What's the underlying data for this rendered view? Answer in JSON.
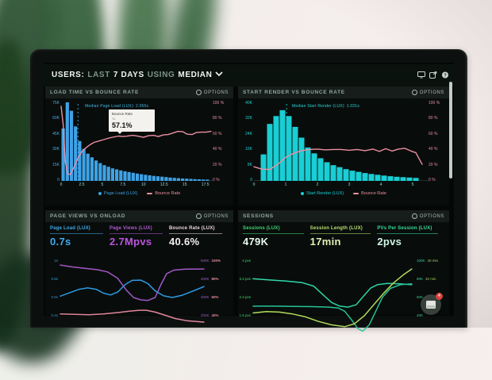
{
  "ui": {
    "options_label": "OPTIONS"
  },
  "header": {
    "title_parts": [
      {
        "text": "USERS:",
        "bold": true
      },
      {
        "text": "LAST",
        "bold": false
      },
      {
        "text": "7 DAYS",
        "bold": true
      },
      {
        "text": "USING",
        "bold": false
      },
      {
        "text": "MEDIAN",
        "bold": true
      }
    ],
    "icons": [
      "display-icon",
      "share-icon",
      "help-icon"
    ]
  },
  "panels": {
    "load_time": {
      "title": "LOAD TIME VS BOUNCE RATE",
      "median_label": "Median Page Load (LUX): 2.056s",
      "tooltip": {
        "title": "Bounce Rate",
        "sub": "7s",
        "value": "57.1%"
      },
      "y_left": [
        "75K",
        "60K",
        "45K",
        "30K",
        "15K",
        "0"
      ],
      "y_right": [
        "100 %",
        "80 %",
        "60 %",
        "40 %",
        "20 %",
        "0 %"
      ],
      "legend": [
        {
          "label": "Page Load (LUX)",
          "color": "#3ea2e6",
          "marker": "dot"
        },
        {
          "label": "Bounce Rate",
          "color": "#ec8fa4",
          "marker": "line"
        }
      ]
    },
    "start_render": {
      "title": "START RENDER VS BOUNCE RATE",
      "median_label": "Median Start Render (LUX): 1.031s",
      "y_left": [
        "40K",
        "32K",
        "24K",
        "16K",
        "8K",
        "0"
      ],
      "y_right": [
        "100 %",
        "80 %",
        "60 %",
        "40 %",
        "20 %",
        "0 %"
      ],
      "legend": [
        {
          "label": "Start Render (LUX)",
          "color": "#19ced4",
          "marker": "dot"
        },
        {
          "label": "Bounce Rate",
          "color": "#ec8fa4",
          "marker": "line"
        }
      ]
    },
    "page_views": {
      "title": "PAGE VIEWS VS ONLOAD",
      "metrics": [
        {
          "label": "Page Load (LUX)",
          "value": "0.7s",
          "color": "#3fa9ec",
          "value_color": "#41aaee"
        },
        {
          "label": "Page Views (LUX)",
          "value": "2.7Mpvs",
          "color": "#b45ad2",
          "value_color": "#bb55dd"
        },
        {
          "label": "Bounce Rate (LUX)",
          "value": "40.6%",
          "color": "#edd7de",
          "value_color": "#f4edf1"
        }
      ],
      "y_left": [
        "1s",
        "0.8s",
        "0.6s",
        "0.4s"
      ],
      "y_right": [
        [
          "500K",
          "100%"
        ],
        [
          "400K",
          "80%"
        ],
        [
          "300K",
          "60%"
        ],
        [
          "200K",
          "40%"
        ]
      ]
    },
    "sessions": {
      "title": "SESSIONS",
      "metrics": [
        {
          "label": "Sessions (LUX)",
          "value": "479K",
          "color": "#43d873",
          "value_color": "#e9fbef"
        },
        {
          "label": "Session Length (LUX)",
          "value": "17min",
          "color": "#b9e171",
          "value_color": "#e3f2b4"
        },
        {
          "label": "PVs Per Session (LUX)",
          "value": "2pvs",
          "color": "#3bdf9f",
          "value_color": "#d2f7e7"
        }
      ],
      "y_left": [
        "4 pvs",
        "3.2 pvs",
        "2.4 pvs",
        "1.6 pvs"
      ],
      "y_right": [
        [
          "100K",
          "40 min"
        ],
        [
          "80K",
          "32 min"
        ],
        [
          "60K",
          "24 min"
        ],
        [
          "40K",
          ""
        ]
      ]
    }
  },
  "messenger": {
    "badge": "4"
  },
  "chart_data": [
    {
      "id": "load_time_vs_bounce",
      "type": "bar",
      "title": "LOAD TIME VS BOUNCE RATE",
      "xlim": [
        0,
        18.4
      ],
      "x_ticks": [
        0,
        2.5,
        5,
        7.5,
        10,
        12.5,
        15,
        17.5
      ],
      "y_left_max_k": 75,
      "y_right_max_pct": 100,
      "median_x": 2.056,
      "bars": {
        "name": "Page Load (LUX)",
        "color": "#3ea2e6",
        "x_start": 0,
        "bin_width": 0.5,
        "values_k": [
          50,
          75,
          67,
          52,
          38,
          30.5,
          26,
          22.5,
          19.5,
          17,
          15,
          13.5,
          12,
          11,
          10,
          9.2,
          8.4,
          7.7,
          7,
          6.4,
          5.8,
          5.3,
          4.8,
          4.4,
          4,
          3.6,
          3.2,
          2.9,
          2.6,
          2.3,
          2.1,
          1.9,
          1.7,
          1.5,
          1.3,
          1.2
        ]
      },
      "line": {
        "name": "Bounce Rate",
        "color": "#ec8fa4",
        "points_pct": [
          [
            0,
            95
          ],
          [
            0.25,
            72
          ],
          [
            0.5,
            25
          ],
          [
            0.8,
            9
          ],
          [
            1.1,
            8
          ],
          [
            1.5,
            16
          ],
          [
            2,
            28
          ],
          [
            2.5,
            37
          ],
          [
            3,
            42
          ],
          [
            3.5,
            46
          ],
          [
            4,
            49
          ],
          [
            5,
            52
          ],
          [
            6,
            55
          ],
          [
            7,
            57.1
          ],
          [
            7.5,
            56.5
          ],
          [
            8,
            57
          ],
          [
            8.7,
            58
          ],
          [
            9.3,
            57
          ],
          [
            10,
            55.5
          ],
          [
            10.6,
            57.5
          ],
          [
            11.2,
            58
          ],
          [
            11.8,
            56.5
          ],
          [
            12.4,
            58.5
          ],
          [
            13,
            59
          ],
          [
            13.6,
            61
          ],
          [
            14.2,
            63
          ],
          [
            14.8,
            62.5
          ],
          [
            15.3,
            59.5
          ],
          [
            15.9,
            59
          ],
          [
            16.4,
            61.5
          ],
          [
            17,
            62
          ],
          [
            17.6,
            62
          ],
          [
            18.2,
            63
          ]
        ]
      }
    },
    {
      "id": "start_render_vs_bounce",
      "type": "bar",
      "title": "START RENDER VS BOUNCE RATE",
      "xlim": [
        0,
        5.5
      ],
      "x_ticks": [
        0,
        1,
        2,
        3,
        4,
        5
      ],
      "y_left_max_k": 40,
      "y_right_max_pct": 100,
      "median_x": 1.031,
      "bars": {
        "name": "Start Render (LUX)",
        "color": "#19ced4",
        "x_start": 0.2,
        "bin_width": 0.2,
        "values_k": [
          13.5,
          29,
          33,
          36,
          33,
          27.5,
          22,
          17,
          14,
          11.5,
          9.5,
          8,
          7,
          6,
          5.2,
          4.6,
          4,
          3.5,
          3.1,
          2.7,
          2.4,
          2.1,
          1.9,
          1.7,
          1.5
        ]
      },
      "line": {
        "name": "Bounce Rate",
        "color": "#ec8fa4",
        "points_pct": [
          [
            0,
            18
          ],
          [
            0.25,
            15
          ],
          [
            0.5,
            14.5
          ],
          [
            0.75,
            21
          ],
          [
            1,
            30
          ],
          [
            1.25,
            35
          ],
          [
            1.5,
            38.5
          ],
          [
            1.75,
            40
          ],
          [
            2,
            40.5
          ],
          [
            2.25,
            39.5
          ],
          [
            2.5,
            40
          ],
          [
            2.75,
            40
          ],
          [
            3,
            39
          ],
          [
            3.25,
            40
          ],
          [
            3.5,
            38.5
          ],
          [
            3.75,
            40.5
          ],
          [
            3.95,
            37.5
          ],
          [
            4.15,
            41
          ],
          [
            4.35,
            38
          ],
          [
            4.55,
            40.5
          ],
          [
            4.75,
            41.5
          ],
          [
            4.95,
            38
          ],
          [
            5.1,
            36
          ],
          [
            5.3,
            21
          ]
        ]
      }
    },
    {
      "id": "page_views_vs_onload",
      "type": "line",
      "title": "PAGE VIEWS VS ONLOAD",
      "x_norm": [
        0,
        1
      ],
      "axes": {
        "seconds": {
          "top": 1.0,
          "bottom": 0.4
        },
        "count_k": {
          "top": 500,
          "bottom": 200
        },
        "percent": {
          "top": 100,
          "bottom": 40
        }
      },
      "series": [
        {
          "name": "Page Load (LUX)",
          "axis": "seconds",
          "color": "#2f9de8",
          "points": [
            [
              0,
              0.615
            ],
            [
              0.07,
              0.655
            ],
            [
              0.13,
              0.69
            ],
            [
              0.19,
              0.705
            ],
            [
              0.25,
              0.69
            ],
            [
              0.3,
              0.648
            ],
            [
              0.35,
              0.628
            ],
            [
              0.4,
              0.66
            ],
            [
              0.45,
              0.74
            ],
            [
              0.5,
              0.788
            ],
            [
              0.56,
              0.79
            ],
            [
              0.61,
              0.752
            ],
            [
              0.66,
              0.672
            ],
            [
              0.72,
              0.618
            ],
            [
              0.78,
              0.6
            ],
            [
              0.85,
              0.625
            ],
            [
              0.93,
              0.675
            ],
            [
              1,
              0.72
            ]
          ]
        },
        {
          "name": "Page Views (LUX)",
          "axis": "count_k",
          "color": "#a458c8",
          "points": [
            [
              0,
              478
            ],
            [
              0.08,
              468
            ],
            [
              0.17,
              460
            ],
            [
              0.26,
              452
            ],
            [
              0.33,
              440
            ],
            [
              0.4,
              405
            ],
            [
              0.46,
              340
            ],
            [
              0.51,
              300
            ],
            [
              0.56,
              287
            ],
            [
              0.61,
              284
            ],
            [
              0.66,
              300
            ],
            [
              0.7,
              370
            ],
            [
              0.74,
              430
            ],
            [
              0.79,
              450
            ],
            [
              0.87,
              455
            ],
            [
              1,
              456
            ]
          ]
        },
        {
          "name": "Bounce Rate",
          "axis": "percent",
          "color": "#e98ba2",
          "points": [
            [
              0,
              42
            ],
            [
              0.1,
              41.5
            ],
            [
              0.2,
              41
            ],
            [
              0.3,
              42
            ],
            [
              0.4,
              43.5
            ],
            [
              0.48,
              45
            ],
            [
              0.55,
              46
            ],
            [
              0.6,
              46
            ],
            [
              0.66,
              44
            ],
            [
              0.73,
              40.5
            ],
            [
              0.8,
              37
            ],
            [
              0.88,
              34.5
            ],
            [
              1,
              33
            ]
          ]
        }
      ]
    },
    {
      "id": "sessions",
      "type": "line",
      "title": "SESSIONS",
      "x_norm": [
        0,
        1
      ],
      "axes": {
        "pvs": {
          "top": 4,
          "bottom": 1.6
        },
        "count_k": {
          "top": 100,
          "bottom": 40
        },
        "minutes": {
          "top": 40,
          "bottom": 16
        }
      },
      "series": [
        {
          "name": "PVs Per Session (LUX)",
          "axis": "pvs",
          "color": "#2fd9a8",
          "points": [
            [
              0,
              3.22
            ],
            [
              0.1,
              3.17
            ],
            [
              0.2,
              3.12
            ],
            [
              0.3,
              3.05
            ],
            [
              0.37,
              2.9
            ],
            [
              0.43,
              2.5
            ],
            [
              0.48,
              2.18
            ],
            [
              0.53,
              2.02
            ],
            [
              0.58,
              1.98
            ],
            [
              0.63,
              2.08
            ],
            [
              0.68,
              2.5
            ],
            [
              0.72,
              2.82
            ],
            [
              0.76,
              2.96
            ],
            [
              0.82,
              3.02
            ],
            [
              0.9,
              3.0
            ],
            [
              0.97,
              2.96
            ]
          ]
        },
        {
          "name": "Sessions (LUX)",
          "axis": "count_k",
          "color": "#27c89a",
          "points": [
            [
              0,
              50.5
            ],
            [
              0.12,
              50.5
            ],
            [
              0.24,
              50.3
            ],
            [
              0.36,
              50
            ],
            [
              0.46,
              49.5
            ],
            [
              0.52,
              48.5
            ],
            [
              0.56,
              45
            ],
            [
              0.6,
              36
            ],
            [
              0.64,
              26
            ],
            [
              0.67,
              23
            ],
            [
              0.71,
              30
            ],
            [
              0.75,
              45
            ],
            [
              0.79,
              60
            ],
            [
              0.84,
              70
            ],
            [
              0.9,
              74
            ],
            [
              0.97,
              75
            ]
          ]
        },
        {
          "name": "Session Length (LUX)",
          "axis": "minutes",
          "color": "#b8e35f",
          "points": [
            [
              0,
              17.2
            ],
            [
              0.08,
              17.8
            ],
            [
              0.16,
              17.6
            ],
            [
              0.24,
              16.8
            ],
            [
              0.32,
              15.5
            ],
            [
              0.4,
              13.5
            ],
            [
              0.48,
              12
            ],
            [
              0.56,
              11.2
            ],
            [
              0.62,
              12.5
            ],
            [
              0.68,
              16
            ],
            [
              0.74,
              21
            ],
            [
              0.8,
              26
            ],
            [
              0.86,
              30.5
            ],
            [
              0.92,
              34
            ],
            [
              0.97,
              36.5
            ]
          ]
        }
      ]
    }
  ]
}
